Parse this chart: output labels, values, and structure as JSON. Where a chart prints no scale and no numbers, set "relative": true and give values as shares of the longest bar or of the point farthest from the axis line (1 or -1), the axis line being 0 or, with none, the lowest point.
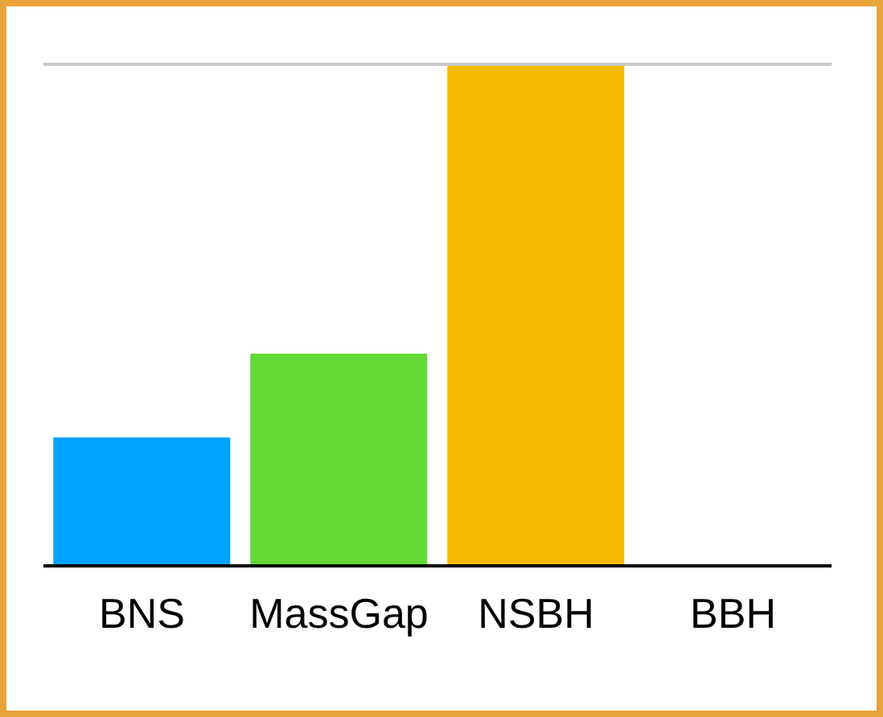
{
  "chart_data": {
    "type": "bar",
    "relative": true,
    "categories": [
      "BNS",
      "MassGap",
      "NSBH",
      "BBH"
    ],
    "values": [
      0.256,
      0.423,
      1,
      0
    ],
    "colors": [
      "#00a2ff",
      "#62d936",
      "#f5b800",
      null
    ],
    "ref_lines": [
      {
        "axis": "y",
        "value": 1,
        "color": "#c8c8c8"
      }
    ]
  }
}
